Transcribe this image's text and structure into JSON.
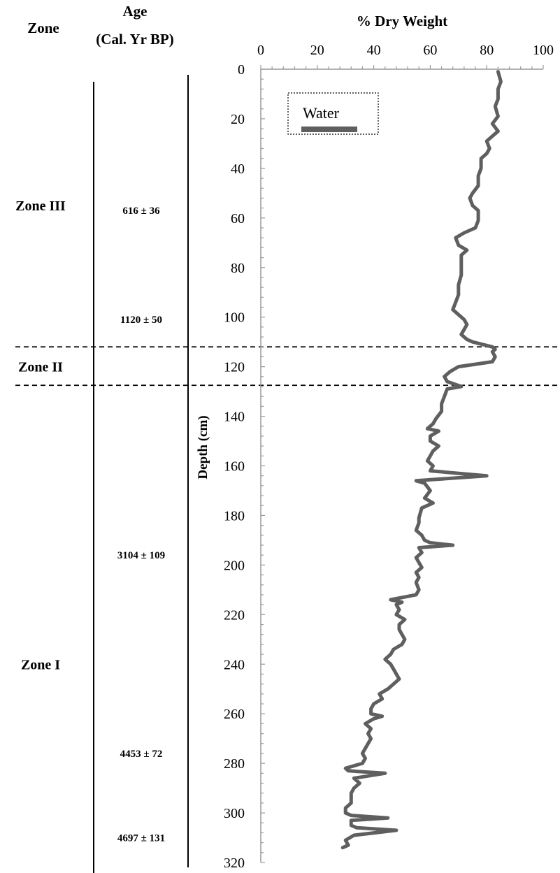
{
  "headers": {
    "zone": "Zone",
    "age_line1": "Age",
    "age_line2": "(Cal. Yr BP)"
  },
  "zones": [
    {
      "label": "Zone III",
      "depth": 55
    },
    {
      "label": "Zone II",
      "depth": 120
    },
    {
      "label": "Zone I",
      "depth": 240
    }
  ],
  "zone_boundaries": [
    112,
    127.5
  ],
  "ages": [
    {
      "label": "616 ± 36",
      "depth": 57
    },
    {
      "label": "1120 ± 50",
      "depth": 101
    },
    {
      "label": "3104 ± 109",
      "depth": 196
    },
    {
      "label": "4453 ± 72",
      "depth": 276
    },
    {
      "label": "4697 ± 131",
      "depth": 310
    }
  ],
  "chart_data": {
    "type": "line",
    "title": "% Dry Weight",
    "ylabel": "Depth (cm)",
    "xlim": [
      0,
      100
    ],
    "ylim": [
      0,
      320
    ],
    "y_inverted": true,
    "x_axis_position": "top",
    "x_ticks": [
      0,
      20,
      40,
      60,
      80,
      100
    ],
    "y_ticks": [
      0,
      20,
      40,
      60,
      80,
      100,
      120,
      140,
      160,
      180,
      200,
      220,
      240,
      260,
      280,
      300,
      320
    ],
    "legend": {
      "position": "top-left",
      "entries": [
        "Water"
      ]
    },
    "colors": {
      "line": "#5f5f5f"
    },
    "series": [
      {
        "name": "Water",
        "points": [
          [
            84,
            1
          ],
          [
            85,
            5
          ],
          [
            84,
            8
          ],
          [
            84,
            12
          ],
          [
            83,
            15
          ],
          [
            84,
            19
          ],
          [
            82,
            22
          ],
          [
            84,
            25
          ],
          [
            82,
            27
          ],
          [
            80,
            29
          ],
          [
            81,
            32
          ],
          [
            80,
            34
          ],
          [
            78,
            36
          ],
          [
            78,
            40
          ],
          [
            77,
            43
          ],
          [
            77,
            47
          ],
          [
            75,
            50
          ],
          [
            74,
            52
          ],
          [
            75,
            55
          ],
          [
            77,
            57
          ],
          [
            77,
            61
          ],
          [
            76,
            64
          ],
          [
            72,
            66
          ],
          [
            69,
            68
          ],
          [
            70,
            71
          ],
          [
            73,
            73
          ],
          [
            71,
            75
          ],
          [
            71,
            79
          ],
          [
            71,
            83
          ],
          [
            70,
            87
          ],
          [
            70,
            91
          ],
          [
            69,
            94
          ],
          [
            68,
            97
          ],
          [
            70,
            99
          ],
          [
            72,
            101
          ],
          [
            73,
            103
          ],
          [
            72,
            105
          ],
          [
            71,
            107
          ],
          [
            73,
            109
          ],
          [
            75,
            110
          ],
          [
            82,
            112
          ],
          [
            83,
            113
          ],
          [
            82,
            114
          ],
          [
            83,
            116
          ],
          [
            82,
            118
          ],
          [
            76,
            119
          ],
          [
            70,
            120
          ],
          [
            67,
            122
          ],
          [
            65,
            124
          ],
          [
            66,
            126
          ],
          [
            71,
            128
          ],
          [
            66,
            129
          ],
          [
            65,
            132
          ],
          [
            64,
            135
          ],
          [
            64,
            138
          ],
          [
            62,
            141
          ],
          [
            61,
            143
          ],
          [
            59,
            145
          ],
          [
            63,
            146
          ],
          [
            60,
            148
          ],
          [
            60,
            150
          ],
          [
            63,
            152
          ],
          [
            61,
            154
          ],
          [
            60,
            156
          ],
          [
            59,
            158
          ],
          [
            61,
            160
          ],
          [
            60,
            162
          ],
          [
            80,
            164
          ],
          [
            55,
            166
          ],
          [
            58,
            167
          ],
          [
            60,
            170
          ],
          [
            58,
            173
          ],
          [
            61,
            175
          ],
          [
            57,
            177
          ],
          [
            56,
            181
          ],
          [
            56,
            183
          ],
          [
            55,
            186
          ],
          [
            57,
            188
          ],
          [
            58,
            190
          ],
          [
            60,
            191
          ],
          [
            68,
            192
          ],
          [
            56,
            193
          ],
          [
            57,
            195
          ],
          [
            55,
            197
          ],
          [
            56,
            199
          ],
          [
            57,
            201
          ],
          [
            55,
            203
          ],
          [
            56,
            205
          ],
          [
            55,
            207
          ],
          [
            56,
            210
          ],
          [
            55,
            212
          ],
          [
            46,
            214
          ],
          [
            50,
            215
          ],
          [
            48,
            216
          ],
          [
            49,
            218
          ],
          [
            48,
            220
          ],
          [
            51,
            222
          ],
          [
            49,
            224
          ],
          [
            49,
            226
          ],
          [
            50,
            228
          ],
          [
            51,
            230
          ],
          [
            50,
            232
          ],
          [
            47,
            234
          ],
          [
            46,
            236
          ],
          [
            44,
            238
          ],
          [
            46,
            240
          ],
          [
            47,
            242
          ],
          [
            48,
            244
          ],
          [
            49,
            246
          ],
          [
            47,
            248
          ],
          [
            45,
            250
          ],
          [
            42,
            252
          ],
          [
            43,
            254
          ],
          [
            40,
            256
          ],
          [
            39,
            258
          ],
          [
            39,
            260
          ],
          [
            43,
            261
          ],
          [
            40,
            262
          ],
          [
            37,
            264
          ],
          [
            39,
            266
          ],
          [
            38,
            268
          ],
          [
            39,
            270
          ],
          [
            38,
            272
          ],
          [
            37,
            274
          ],
          [
            36,
            276
          ],
          [
            37,
            278
          ],
          [
            36,
            280
          ],
          [
            30,
            282
          ],
          [
            31,
            283
          ],
          [
            44,
            284
          ],
          [
            33,
            286
          ],
          [
            35,
            288
          ],
          [
            33,
            290
          ],
          [
            32,
            292
          ],
          [
            32,
            294
          ],
          [
            32,
            296
          ],
          [
            30,
            298
          ],
          [
            30,
            300
          ],
          [
            32,
            301
          ],
          [
            45,
            302
          ],
          [
            32,
            303
          ],
          [
            32,
            305
          ],
          [
            34,
            306
          ],
          [
            48,
            307
          ],
          [
            33,
            309
          ],
          [
            30,
            311
          ],
          [
            31,
            313
          ],
          [
            29,
            314
          ]
        ]
      }
    ]
  }
}
